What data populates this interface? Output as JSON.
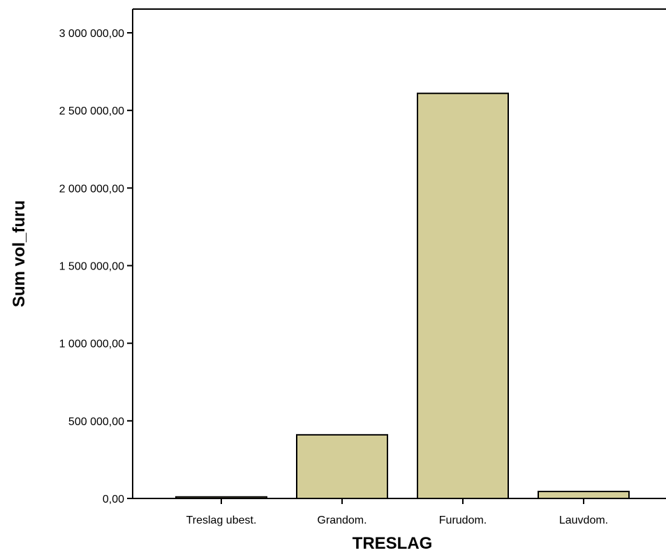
{
  "chart_data": {
    "type": "bar",
    "title": "",
    "xlabel": "TRESLAG",
    "ylabel": "Sum vol_furu",
    "categories": [
      "Treslag ubest.",
      "Grandom.",
      "Furudom.",
      "Lauvdom."
    ],
    "values": [
      10000,
      410000,
      2610000,
      45000
    ],
    "ylim": [
      0,
      3000000
    ],
    "yticks": [
      0,
      500000,
      1000000,
      1500000,
      2000000,
      2500000,
      3000000
    ],
    "ytick_labels": [
      "0,00",
      "500 000,00",
      "1 000 000,00",
      "1 500 000,00",
      "2 000 000,00",
      "2 500 000,00",
      "3 000 000,00"
    ],
    "grid": false,
    "bar_color": "#d4ce98",
    "bar_edge_color": "#000000"
  }
}
